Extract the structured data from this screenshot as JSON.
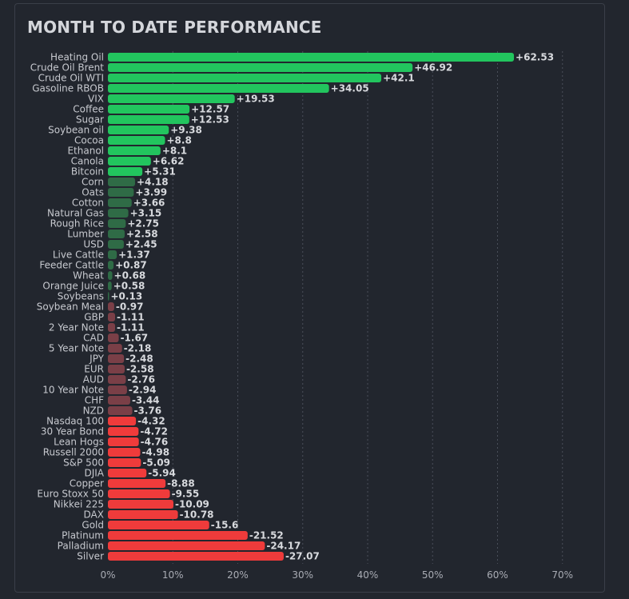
{
  "title": "MONTH TO DATE PERFORMANCE",
  "chart_data": {
    "type": "bar",
    "orientation": "horizontal",
    "title": "MONTH TO DATE PERFORMANCE",
    "xlabel": "",
    "ylabel": "",
    "xlim": [
      0,
      70
    ],
    "x_ticks": [
      0,
      10,
      20,
      30,
      40,
      50,
      60,
      70
    ],
    "x_tick_labels": [
      "0%",
      "10%",
      "20%",
      "30%",
      "40%",
      "50%",
      "60%",
      "70%"
    ],
    "bar_length_basis": "absolute value of change",
    "grid": true,
    "categories": [
      "Heating Oil",
      "Crude Oil Brent",
      "Crude Oil WTI",
      "Gasoline RBOB",
      "VIX",
      "Coffee",
      "Sugar",
      "Soybean oil",
      "Cocoa",
      "Ethanol",
      "Canola",
      "Bitcoin",
      "Corn",
      "Oats",
      "Cotton",
      "Natural Gas",
      "Rough Rice",
      "Lumber",
      "USD",
      "Live Cattle",
      "Feeder Cattle",
      "Wheat",
      "Orange Juice",
      "Soybeans",
      "Soybean Meal",
      "GBP",
      "2 Year Note",
      "CAD",
      "5 Year Note",
      "JPY",
      "EUR",
      "AUD",
      "10 Year Note",
      "CHF",
      "NZD",
      "Nasdaq 100",
      "30 Year Bond",
      "Lean Hogs",
      "Russell 2000",
      "S&P 500",
      "DJIA",
      "Copper",
      "Euro Stoxx 50",
      "Nikkei 225",
      "DAX",
      "Gold",
      "Platinum",
      "Palladium",
      "Silver"
    ],
    "values": [
      62.53,
      46.92,
      42.1,
      34.05,
      19.53,
      12.57,
      12.53,
      9.38,
      8.8,
      8.1,
      6.62,
      5.31,
      4.18,
      3.99,
      3.66,
      3.15,
      2.75,
      2.58,
      2.45,
      1.37,
      0.87,
      0.68,
      0.58,
      0.13,
      -0.97,
      -1.11,
      -1.11,
      -1.67,
      -2.18,
      -2.48,
      -2.58,
      -2.76,
      -2.94,
      -3.44,
      -3.76,
      -4.32,
      -4.72,
      -4.76,
      -4.98,
      -5.09,
      -5.94,
      -8.88,
      -9.55,
      -10.09,
      -10.78,
      -15.6,
      -21.52,
      -24.17,
      -27.07
    ],
    "value_labels": [
      "+62.53",
      "+46.92",
      "+42.1",
      "+34.05",
      "+19.53",
      "+12.57",
      "+12.53",
      "+9.38",
      "+8.8",
      "+8.1",
      "+6.62",
      "+5.31",
      "+4.18",
      "+3.99",
      "+3.66",
      "+3.15",
      "+2.75",
      "+2.58",
      "+2.45",
      "+1.37",
      "+0.87",
      "+0.68",
      "+0.58",
      "+0.13",
      "-0.97",
      "-1.11",
      "-1.11",
      "-1.67",
      "-2.18",
      "-2.48",
      "-2.58",
      "-2.76",
      "-2.94",
      "-3.44",
      "-3.76",
      "-4.32",
      "-4.72",
      "-4.76",
      "-4.98",
      "-5.09",
      "-5.94",
      "-8.88",
      "-9.55",
      "-10.09",
      "-10.78",
      "-15.6",
      "-21.52",
      "-24.17",
      "-27.07"
    ]
  },
  "colors": {
    "pos_strong": "#22c55e",
    "pos_weak": "#2f6b46",
    "neg_weak": "#7a3f47",
    "neg_strong": "#ef3b3b"
  }
}
